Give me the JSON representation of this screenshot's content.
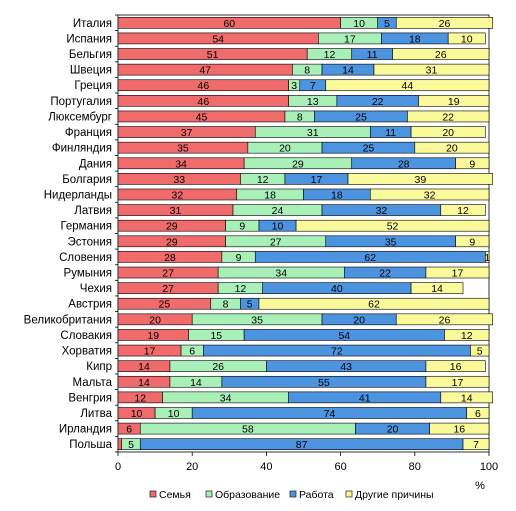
{
  "chart_data": {
    "type": "bar",
    "orientation": "horizontal",
    "stacked": true,
    "categories": [
      "Италия",
      "Испания",
      "Бельгия",
      "Швеция",
      "Греция",
      "Португалия",
      "Люксембург",
      "Франция",
      "Финляндия",
      "Дания",
      "Болгария",
      "Нидерланды",
      "Латвия",
      "Германия",
      "Эстония",
      "Словения",
      "Румыния",
      "Чехия",
      "Австрия",
      "Великобритания",
      "Словакия",
      "Хорватия",
      "Кипр",
      "Мальта",
      "Венгрия",
      "Литва",
      "Ирландия",
      "Польша"
    ],
    "series": [
      {
        "name": "Семья",
        "color": "#f06b6b",
        "values": [
          60,
          54,
          51,
          47,
          46,
          46,
          45,
          37,
          35,
          34,
          33,
          32,
          31,
          29,
          29,
          28,
          27,
          27,
          25,
          20,
          19,
          17,
          14,
          14,
          12,
          10,
          6,
          1
        ]
      },
      {
        "name": "Образование",
        "color": "#a8f0b8",
        "values": [
          10,
          17,
          12,
          8,
          3,
          13,
          8,
          31,
          20,
          29,
          12,
          18,
          24,
          9,
          27,
          9,
          34,
          12,
          8,
          35,
          15,
          6,
          26,
          14,
          34,
          10,
          58,
          5
        ]
      },
      {
        "name": "Работа",
        "color": "#4c94e0",
        "values": [
          5,
          18,
          11,
          14,
          7,
          22,
          25,
          11,
          25,
          28,
          17,
          18,
          32,
          10,
          35,
          62,
          22,
          40,
          5,
          20,
          54,
          72,
          43,
          55,
          41,
          74,
          20,
          87
        ]
      },
      {
        "name": "Другие причины",
        "color": "#fafa9a",
        "values": [
          26,
          10,
          26,
          31,
          44,
          19,
          22,
          20,
          20,
          9,
          39,
          32,
          12,
          52,
          9,
          1,
          17,
          14,
          62,
          26,
          12,
          5,
          16,
          17,
          14,
          6,
          16,
          7
        ]
      }
    ],
    "point_labels": [
      [
        "60",
        "10",
        "5",
        "26"
      ],
      [
        "54",
        "17",
        "18",
        "10"
      ],
      [
        "51",
        "12",
        "11",
        "26"
      ],
      [
        "47",
        "8",
        "14",
        "31"
      ],
      [
        "46",
        "3",
        "7",
        "44"
      ],
      [
        "46",
        "13",
        "22",
        "19"
      ],
      [
        "45",
        "8",
        "25",
        "22"
      ],
      [
        "37",
        "31",
        "11",
        "20"
      ],
      [
        "35",
        "20",
        "25",
        "20"
      ],
      [
        "34",
        "29",
        "28",
        "9"
      ],
      [
        "33",
        "12",
        "17",
        "39"
      ],
      [
        "32",
        "18",
        "18",
        "32"
      ],
      [
        "31",
        "24",
        "32",
        "12"
      ],
      [
        "29",
        "9",
        "10",
        "52"
      ],
      [
        "29",
        "27",
        "35",
        "9"
      ],
      [
        "28",
        "9",
        "62",
        "1"
      ],
      [
        "27",
        "34",
        "22",
        "17"
      ],
      [
        "27",
        "12",
        "40",
        "14"
      ],
      [
        "25",
        "8",
        "5",
        "62"
      ],
      [
        "20",
        "35",
        "20",
        "26"
      ],
      [
        "19",
        "15",
        "54",
        "12"
      ],
      [
        "17",
        "6",
        "72",
        "5"
      ],
      [
        "14",
        "26",
        "43",
        "16"
      ],
      [
        "14",
        "14",
        "55",
        "17"
      ],
      [
        "12",
        "34",
        "41",
        "14"
      ],
      [
        "10",
        "10",
        "74",
        "6"
      ],
      [
        "6",
        "58",
        "20",
        "16"
      ],
      [
        "",
        "5",
        "87",
        "7"
      ]
    ],
    "xlim": [
      0,
      100
    ],
    "xticks": [
      "0",
      "20",
      "40",
      "60",
      "80",
      "100"
    ],
    "xunit": "%",
    "legend_position": "bottom",
    "grid": false
  }
}
